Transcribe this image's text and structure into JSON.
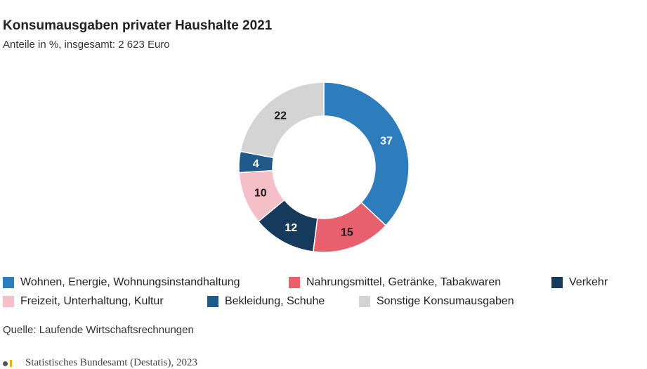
{
  "header": {
    "title": "Konsumausgaben privater Haushalte 2021",
    "subtitle": "Anteile in %, insgesamt: 2 623 Euro"
  },
  "chart_data": {
    "type": "pie",
    "variant": "donut",
    "title": "Konsumausgaben privater Haushalte 2021",
    "subtitle": "Anteile in %, insgesamt: 2 623 Euro",
    "unit": "%",
    "categories": [
      "Wohnen, Energie, Wohnungsinstandhaltung",
      "Nahrungsmittel, Getränke, Tabakwaren",
      "Verkehr",
      "Freizeit, Unterhaltung, Kultur",
      "Bekleidung, Schuhe",
      "Sonstige Konsumausgaben"
    ],
    "values": [
      37,
      15,
      12,
      10,
      4,
      22
    ],
    "labels": [
      "37",
      "15",
      "12",
      "10",
      "4",
      "22"
    ],
    "colors": [
      "#2d7dbd",
      "#e8606e",
      "#163a5c",
      "#f5bfc8",
      "#1f5a8a",
      "#d4d4d4"
    ],
    "label_colors": [
      "#ffffff",
      "#1a1a1a",
      "#ffffff",
      "#1a1a1a",
      "#ffffff",
      "#1a1a1a"
    ],
    "legend_position": "bottom"
  },
  "legend": {
    "items": [
      {
        "label": "Wohnen, Energie, Wohnungsinstandhaltung",
        "color": "#2d7dbd"
      },
      {
        "label": "Nahrungsmittel, Getränke, Tabakwaren",
        "color": "#e8606e"
      },
      {
        "label": "Verkehr",
        "color": "#163a5c"
      },
      {
        "label": "Freizeit, Unterhaltung, Kultur",
        "color": "#f5bfc8"
      },
      {
        "label": "Bekleidung, Schuhe",
        "color": "#1f5a8a"
      },
      {
        "label": "Sonstige Konsumausgaben",
        "color": "#d4d4d4"
      }
    ]
  },
  "source": "Quelle: Laufende Wirtschaftsrechnungen",
  "footer": "Statistisches Bundesamt (Destatis), 2023"
}
